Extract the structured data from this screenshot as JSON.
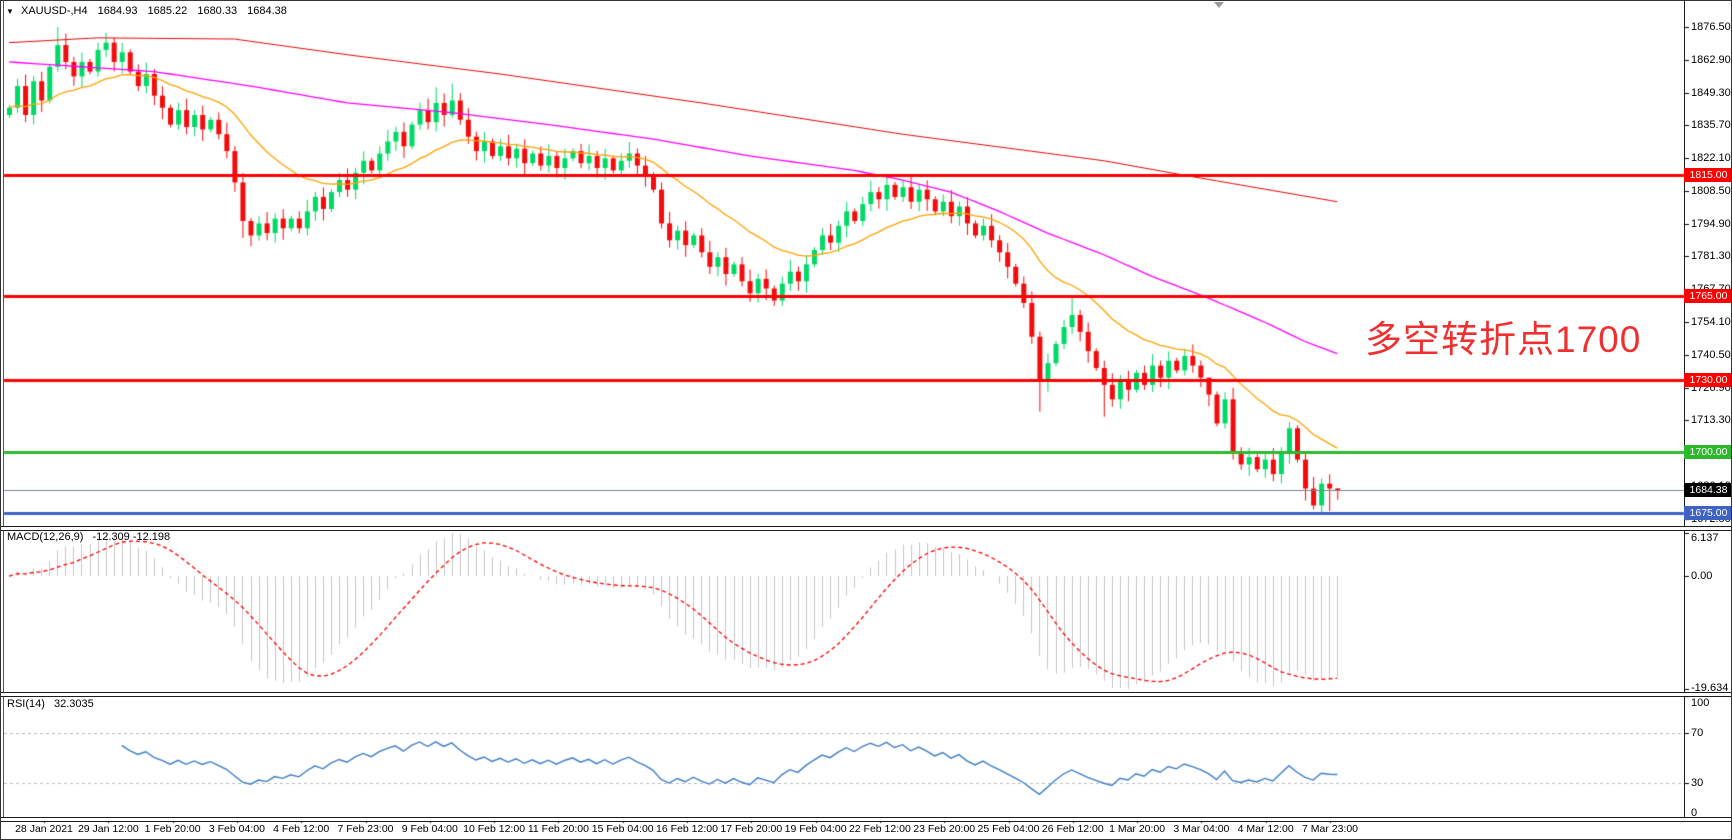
{
  "title": {
    "dropdown_icon": "▼",
    "symbol_period": "XAUUSD-,H4",
    "open": "1684.93",
    "high": "1685.22",
    "low": "1680.33",
    "close": "1684.38"
  },
  "annotation": {
    "text": "多空转折点1700",
    "color": "#ee3030"
  },
  "indicators": {
    "macd": {
      "header_label": "MACD(12,26,9)",
      "header_values": "-12.309 -12.198",
      "fast": 12,
      "slow": 26,
      "signal": 9,
      "axis_max": "6.137",
      "axis_zero": "0.00",
      "axis_min": "-19.634"
    },
    "rsi": {
      "header_label": "RSI(14)",
      "header_value": "32.3035",
      "period": 14,
      "axis_ticks": [
        "100",
        "70",
        "30",
        "0"
      ],
      "levels": [
        70,
        30
      ]
    }
  },
  "levels": [
    {
      "label": "1815.00",
      "value": 1815.0,
      "color": "#ff0000",
      "width": 3
    },
    {
      "label": "1765.00",
      "value": 1765.0,
      "color": "#ff0000",
      "width": 3
    },
    {
      "label": "1730.00",
      "value": 1730.0,
      "color": "#ff0000",
      "width": 3
    },
    {
      "label": "1700.00",
      "value": 1700.0,
      "color": "#2eb82e",
      "width": 3
    },
    {
      "label": "1675.00",
      "value": 1675.0,
      "color": "#3e62c4",
      "width": 3
    }
  ],
  "price_line": {
    "label": "1684.38",
    "value": 1684.38,
    "line_color": "#76838f",
    "badge_bg": "#000000"
  },
  "axis": {
    "price_ticks": [
      "1876.50",
      "1862.90",
      "1849.30",
      "1835.70",
      "1822.10",
      "1808.50",
      "1794.90",
      "1781.30",
      "1767.70",
      "1754.10",
      "1740.50",
      "1726.90",
      "1713.30",
      "1699.70",
      "1686.10",
      "1672.50"
    ],
    "time_labels": [
      "28 Jan 2021",
      "29 Jan 12:00",
      "1 Feb 20:00",
      "3 Feb 04:00",
      "4 Feb 12:00",
      "7 Feb 23:00",
      "9 Feb 04:00",
      "10 Feb 12:00",
      "11 Feb 20:00",
      "15 Feb 04:00",
      "16 Feb 12:00",
      "17 Feb 20:00",
      "19 Feb 04:00",
      "22 Feb 12:00",
      "23 Feb 20:00",
      "25 Feb 04:00",
      "26 Feb 12:00",
      "1 Mar 20:00",
      "3 Mar 04:00",
      "4 Mar 12:00",
      "7 Mar 23:00"
    ]
  },
  "chart_data": {
    "type": "candlestick",
    "symbol": "XAUUSD-",
    "timeframe": "H4",
    "price_range_visible": [
      1671.0,
      1888.0
    ],
    "current_bar": {
      "open": 1684.93,
      "high": 1685.22,
      "low": 1680.33,
      "close": 1684.38
    },
    "closes": [
      1843,
      1852,
      1840,
      1854,
      1846,
      1860,
      1869,
      1862,
      1856,
      1862,
      1858,
      1867,
      1870,
      1862,
      1866,
      1858,
      1852,
      1857,
      1848,
      1843,
      1836,
      1842,
      1835,
      1840,
      1834,
      1838,
      1832,
      1825,
      1812,
      1796,
      1790,
      1795,
      1791,
      1797,
      1793,
      1797,
      1793,
      1800,
      1806,
      1801,
      1808,
      1813,
      1809,
      1816,
      1821,
      1817,
      1824,
      1829,
      1833,
      1827,
      1836,
      1842,
      1837,
      1845,
      1840,
      1846,
      1838,
      1831,
      1825,
      1829,
      1823,
      1827,
      1822,
      1826,
      1820,
      1824,
      1819,
      1823,
      1818,
      1822,
      1825,
      1820,
      1823,
      1818,
      1822,
      1817,
      1821,
      1824,
      1819,
      1815,
      1809,
      1795,
      1788,
      1792,
      1786,
      1790,
      1783,
      1777,
      1781,
      1774,
      1778,
      1771,
      1766,
      1772,
      1768,
      1763,
      1770,
      1775,
      1771,
      1778,
      1784,
      1790,
      1787,
      1794,
      1800,
      1796,
      1803,
      1808,
      1805,
      1811,
      1806,
      1810,
      1804,
      1809,
      1805,
      1800,
      1804,
      1798,
      1802,
      1795,
      1790,
      1794,
      1788,
      1783,
      1777,
      1770,
      1762,
      1748,
      1730,
      1737,
      1745,
      1752,
      1757,
      1750,
      1742,
      1735,
      1728,
      1722,
      1730,
      1726,
      1733,
      1728,
      1736,
      1731,
      1738,
      1734,
      1740,
      1736,
      1731,
      1724,
      1712,
      1722,
      1700,
      1695,
      1698,
      1693,
      1697,
      1691,
      1700,
      1710,
      1697,
      1685,
      1678,
      1687,
      1685,
      1684.38
    ],
    "high_overrides": {
      "6": 1876.5,
      "12": 1874,
      "53": 1851.5,
      "55": 1853,
      "109": 1815.6,
      "132": 1765.2,
      "149": 1726,
      "159": 1712.5,
      "165": 1685.22
    },
    "low_overrides": {
      "29": 1789,
      "30": 1785.5,
      "92": 1762.5,
      "95": 1760.8,
      "128": 1716.9,
      "136": 1714.8,
      "153": 1692.8,
      "156": 1689.5,
      "161": 1680,
      "162": 1676.3,
      "164": 1675.6,
      "165": 1680.33
    },
    "ma_red_anchors": [
      [
        0,
        1870
      ],
      [
        11,
        1872
      ],
      [
        28,
        1871.5
      ],
      [
        42,
        1865
      ],
      [
        61,
        1857
      ],
      [
        86,
        1845
      ],
      [
        111,
        1832
      ],
      [
        136,
        1821
      ],
      [
        146,
        1815
      ],
      [
        165,
        1804
      ]
    ],
    "ma_magenta_anchors": [
      [
        0,
        1862
      ],
      [
        18,
        1858
      ],
      [
        30,
        1852
      ],
      [
        42,
        1845
      ],
      [
        55,
        1841
      ],
      [
        67,
        1836
      ],
      [
        80,
        1830
      ],
      [
        92,
        1823
      ],
      [
        105,
        1817
      ],
      [
        111,
        1813
      ],
      [
        117,
        1808
      ],
      [
        123,
        1800
      ],
      [
        129,
        1791
      ],
      [
        136,
        1782
      ],
      [
        142,
        1773
      ],
      [
        149,
        1764
      ],
      [
        156,
        1754
      ],
      [
        161,
        1746
      ],
      [
        165,
        1741
      ]
    ],
    "ma_orange_period": 20,
    "colors": {
      "bull": "#00d966",
      "bear": "#f20c0c",
      "ma_red": "#e60000",
      "ma_magenta": "#ff00ff",
      "ma_orange": "#ffa200",
      "macd_hist": "#c6c6c6",
      "macd_signal": "#ff0000",
      "rsi_line": "#3c7cc8",
      "grid_dash": "#bcbcbc"
    }
  }
}
